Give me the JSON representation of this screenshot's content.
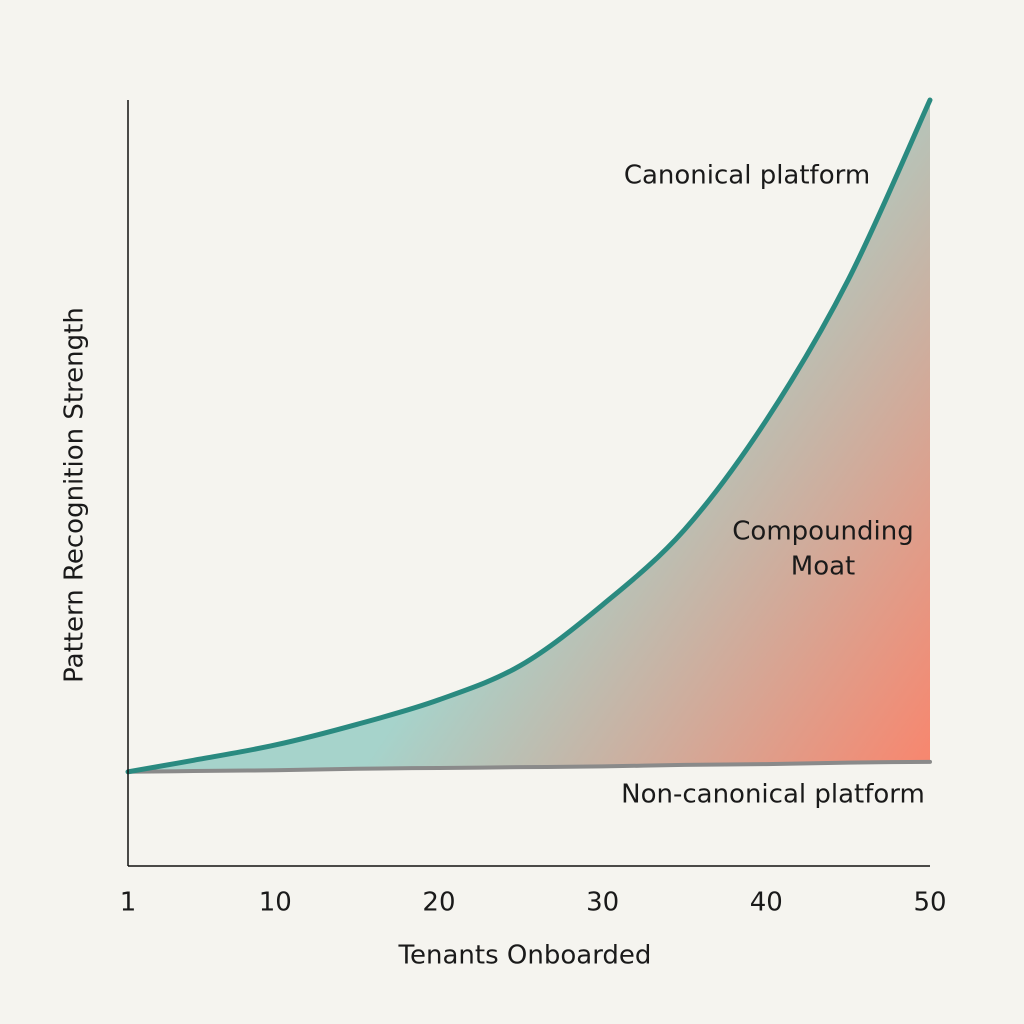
{
  "chart_data": {
    "type": "line",
    "x_label": "Tenants Onboarded",
    "y_label": "Pattern Recognition Strength",
    "x": [
      1,
      5,
      10,
      15,
      20,
      25,
      30,
      35,
      40,
      45,
      50
    ],
    "series": [
      {
        "name": "Canonical platform",
        "color": "#2a8a80",
        "values": [
          12.3,
          13.8,
          15.8,
          18.5,
          21.7,
          26.2,
          34.1,
          43.9,
          58.2,
          76.5,
          100
        ]
      },
      {
        "name": "Non-canonical platform",
        "color": "#8a8a8a",
        "values": [
          12.3,
          12.4,
          12.5,
          12.7,
          12.8,
          12.9,
          13.0,
          13.2,
          13.3,
          13.5,
          13.6
        ]
      }
    ],
    "annotations": [
      {
        "lines": [
          "Compounding",
          "Moat"
        ]
      }
    ],
    "area_colors": [
      "#a6d3cb",
      "#f7876f"
    ],
    "xlim": [
      1,
      50
    ],
    "xticks": [
      1,
      10,
      20,
      30,
      40,
      50
    ],
    "ylim": [
      0,
      100
    ]
  }
}
